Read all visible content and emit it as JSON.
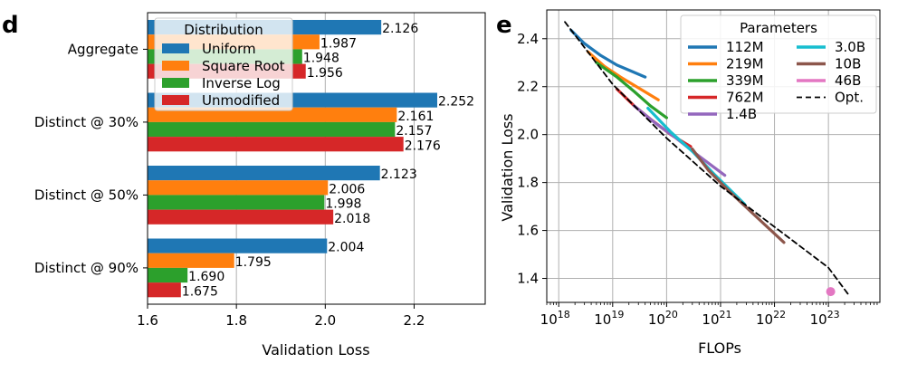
{
  "chart_data": [
    {
      "panel": "d",
      "type": "bar",
      "orientation": "horizontal",
      "categories": [
        "Aggregate",
        "Distinct @ 30%",
        "Distinct @ 50%",
        "Distinct @ 90%"
      ],
      "series": [
        {
          "name": "Uniform",
          "color": "#1f77b4",
          "values": [
            2.126,
            2.252,
            2.123,
            2.004
          ],
          "labels": [
            "2.126",
            "2.252",
            "2.123",
            "2.004"
          ]
        },
        {
          "name": "Square Root",
          "color": "#ff7f0e",
          "values": [
            1.987,
            2.161,
            2.006,
            1.795
          ],
          "labels": [
            "1.987",
            "2.161",
            "2.006",
            "1.795"
          ]
        },
        {
          "name": "Inverse Log",
          "color": "#2ca02c",
          "values": [
            1.948,
            2.157,
            1.998,
            1.69
          ],
          "labels": [
            "1.948",
            "2.157",
            "1.998",
            "1.690"
          ]
        },
        {
          "name": "Unmodified",
          "color": "#d62728",
          "values": [
            1.956,
            2.176,
            2.018,
            1.675
          ],
          "labels": [
            "1.956",
            "2.176",
            "2.018",
            "1.675"
          ]
        }
      ],
      "xlabel": "Validation Loss",
      "xlim": [
        1.6,
        2.36
      ],
      "xticks": [
        1.6,
        1.8,
        2.0,
        2.2
      ],
      "xtick_labels": [
        "1.6",
        "1.8",
        "2.0",
        "2.2"
      ],
      "grid": "vertical",
      "legend_title": "Distribution",
      "legend_position": "upper left"
    },
    {
      "panel": "e",
      "type": "line",
      "xscale": "log",
      "xlabel": "FLOPs",
      "ylabel": "Validation Loss",
      "xlim": [
        6e+17,
        9e+23
      ],
      "ylim": [
        1.3,
        2.52
      ],
      "xticks": [
        1e+18,
        1e+19,
        1e+20,
        1e+21,
        1e+22,
        1e+23
      ],
      "xtick_labels": [
        {
          "base": "10",
          "exp": "18"
        },
        {
          "base": "10",
          "exp": "19"
        },
        {
          "base": "10",
          "exp": "20"
        },
        {
          "base": "10",
          "exp": "21"
        },
        {
          "base": "10",
          "exp": "22"
        },
        {
          "base": "10",
          "exp": "23"
        }
      ],
      "yticks": [
        1.4,
        1.6,
        1.8,
        2.0,
        2.2,
        2.4
      ],
      "ytick_labels": [
        "1.4",
        "1.6",
        "1.8",
        "2.0",
        "2.2",
        "2.4"
      ],
      "grid": "both",
      "legend_title": "Parameters",
      "legend_position": "upper right",
      "series": [
        {
          "name": "112M",
          "color": "#1f77b4",
          "x": [
            1.7e+18,
            3e+18,
            6e+18,
            1.2e+19,
            2.2e+19,
            4e+19
          ],
          "y": [
            2.435,
            2.38,
            2.33,
            2.29,
            2.265,
            2.24
          ]
        },
        {
          "name": "219M",
          "color": "#ff7f0e",
          "x": [
            3.5e+18,
            7e+18,
            1.4e+19,
            3e+19,
            7e+19
          ],
          "y": [
            2.345,
            2.285,
            2.24,
            2.195,
            2.145
          ]
        },
        {
          "name": "339M",
          "color": "#2ca02c",
          "x": [
            5e+18,
            1.2e+19,
            2.5e+19,
            5e+19,
            1e+20
          ],
          "y": [
            2.3,
            2.24,
            2.18,
            2.12,
            2.07
          ]
        },
        {
          "name": "762M",
          "color": "#d62728",
          "x": [
            1.2e+19,
            2.5e+19,
            5e+19,
            1.2e+20,
            2.8e+20
          ],
          "y": [
            2.19,
            2.12,
            2.065,
            2.0,
            1.95
          ]
        },
        {
          "name": "1.4B",
          "color": "#9467bd",
          "x": [
            2.5e+19,
            6e+19,
            1.4e+20,
            4e+20,
            1.2e+21
          ],
          "y": [
            2.12,
            2.05,
            1.99,
            1.91,
            1.83
          ]
        },
        {
          "name": "3.0B",
          "color": "#17becf",
          "x": [
            4.5e+19,
            1.2e+20,
            3e+20,
            8e+20,
            2.8e+21
          ],
          "y": [
            2.11,
            2.01,
            1.93,
            1.83,
            1.71
          ]
        },
        {
          "name": "10B",
          "color": "#8c564b",
          "x": [
            3e+20,
            6e+20,
            1.5e+21,
            4e+21,
            1.5e+22
          ],
          "y": [
            1.94,
            1.85,
            1.76,
            1.67,
            1.55
          ]
        },
        {
          "name": "46B",
          "color": "#e377c2",
          "x": [
            1.1e+23
          ],
          "y": [
            1.345
          ],
          "marker": "point"
        },
        {
          "name": "Opt.",
          "color": "#000000",
          "style": "dashed",
          "x": [
            1.3e+18,
            1e+19,
            1e+20,
            1e+21,
            1e+22,
            1e+23,
            2.3e+23
          ],
          "y": [
            2.47,
            2.21,
            1.985,
            1.785,
            1.615,
            1.445,
            1.335
          ]
        }
      ]
    }
  ]
}
